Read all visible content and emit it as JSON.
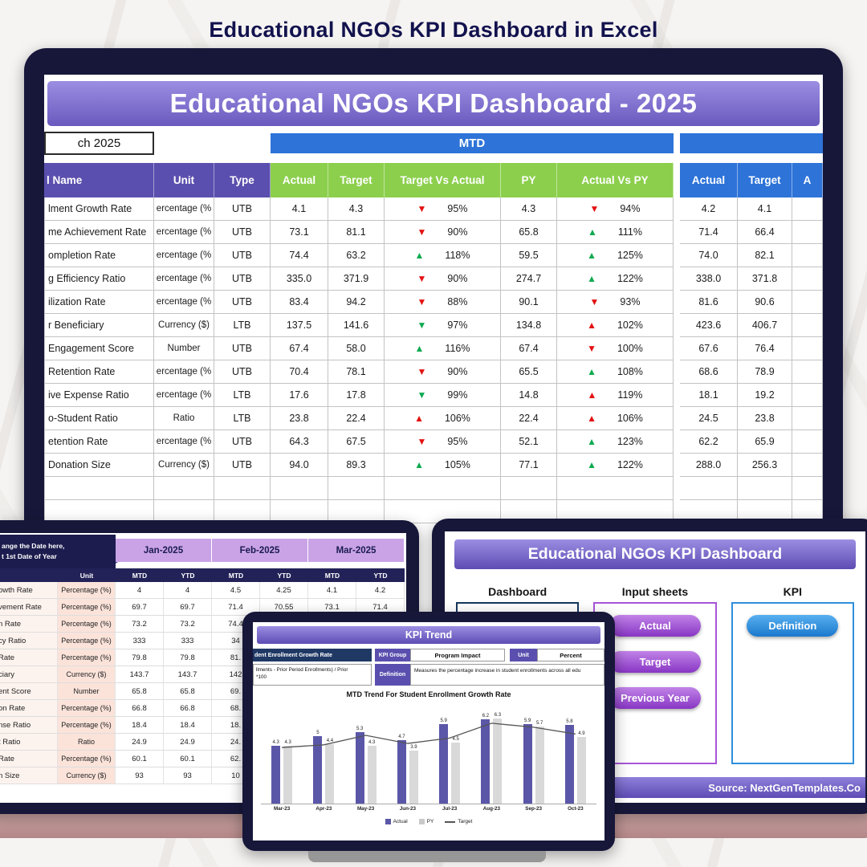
{
  "page_title": "Educational NGOs KPI Dashboard in Excel",
  "main_dashboard": {
    "title": "Educational NGOs KPI Dashboard - 2025",
    "date_box": "ch 2025",
    "mtd_label": "MTD",
    "header": {
      "name": "l Name",
      "unit": "Unit",
      "type": "Type",
      "mtd_cols": [
        "Actual",
        "Target",
        "Target Vs Actual",
        "PY",
        "Actual Vs PY"
      ],
      "right_cols": [
        "Actual",
        "Target",
        "A"
      ]
    },
    "rows": [
      {
        "name": "lment Growth Rate",
        "unit": "ercentage (%",
        "type": "UTB",
        "actual": "4.1",
        "target": "4.3",
        "tva_arrow": "▼",
        "tva_color": "red",
        "tva": "95%",
        "py": "4.3",
        "avp_arrow": "▼",
        "avp_color": "red",
        "avp": "94%",
        "r_actual": "4.2",
        "r_target": "4.1"
      },
      {
        "name": "me Achievement Rate",
        "unit": "ercentage (%",
        "type": "UTB",
        "actual": "73.1",
        "target": "81.1",
        "tva_arrow": "▼",
        "tva_color": "red",
        "tva": "90%",
        "py": "65.8",
        "avp_arrow": "▲",
        "avp_color": "green",
        "avp": "111%",
        "r_actual": "71.4",
        "r_target": "66.4"
      },
      {
        "name": "ompletion Rate",
        "unit": "ercentage (%",
        "type": "UTB",
        "actual": "74.4",
        "target": "63.2",
        "tva_arrow": "▲",
        "tva_color": "green",
        "tva": "118%",
        "py": "59.5",
        "avp_arrow": "▲",
        "avp_color": "green",
        "avp": "125%",
        "r_actual": "74.0",
        "r_target": "82.1"
      },
      {
        "name": "g Efficiency Ratio",
        "unit": "ercentage (%",
        "type": "UTB",
        "actual": "335.0",
        "target": "371.9",
        "tva_arrow": "▼",
        "tva_color": "red",
        "tva": "90%",
        "py": "274.7",
        "avp_arrow": "▲",
        "avp_color": "green",
        "avp": "122%",
        "r_actual": "338.0",
        "r_target": "371.8"
      },
      {
        "name": "ilization Rate",
        "unit": "ercentage (%",
        "type": "UTB",
        "actual": "83.4",
        "target": "94.2",
        "tva_arrow": "▼",
        "tva_color": "red",
        "tva": "88%",
        "py": "90.1",
        "avp_arrow": "▼",
        "avp_color": "red",
        "avp": "93%",
        "r_actual": "81.6",
        "r_target": "90.6"
      },
      {
        "name": "r Beneficiary",
        "unit": "Currency ($)",
        "type": "LTB",
        "actual": "137.5",
        "target": "141.6",
        "tva_arrow": "▼",
        "tva_color": "green",
        "tva": "97%",
        "py": "134.8",
        "avp_arrow": "▲",
        "avp_color": "red",
        "avp": "102%",
        "r_actual": "423.6",
        "r_target": "406.7"
      },
      {
        "name": "Engagement Score",
        "unit": "Number",
        "type": "UTB",
        "actual": "67.4",
        "target": "58.0",
        "tva_arrow": "▲",
        "tva_color": "green",
        "tva": "116%",
        "py": "67.4",
        "avp_arrow": "▼",
        "avp_color": "red",
        "avp": "100%",
        "r_actual": "67.6",
        "r_target": "76.4"
      },
      {
        "name": "Retention Rate",
        "unit": "ercentage (%",
        "type": "UTB",
        "actual": "70.4",
        "target": "78.1",
        "tva_arrow": "▼",
        "tva_color": "red",
        "tva": "90%",
        "py": "65.5",
        "avp_arrow": "▲",
        "avp_color": "green",
        "avp": "108%",
        "r_actual": "68.6",
        "r_target": "78.9"
      },
      {
        "name": "ive Expense Ratio",
        "unit": "ercentage (%",
        "type": "LTB",
        "actual": "17.6",
        "target": "17.8",
        "tva_arrow": "▼",
        "tva_color": "green",
        "tva": "99%",
        "py": "14.8",
        "avp_arrow": "▲",
        "avp_color": "red",
        "avp": "119%",
        "r_actual": "18.1",
        "r_target": "19.2"
      },
      {
        "name": "o-Student Ratio",
        "unit": "Ratio",
        "type": "LTB",
        "actual": "23.8",
        "target": "22.4",
        "tva_arrow": "▲",
        "tva_color": "red",
        "tva": "106%",
        "py": "22.4",
        "avp_arrow": "▲",
        "avp_color": "red",
        "avp": "106%",
        "r_actual": "24.5",
        "r_target": "23.8"
      },
      {
        "name": "etention Rate",
        "unit": "ercentage (%",
        "type": "UTB",
        "actual": "64.3",
        "target": "67.5",
        "tva_arrow": "▼",
        "tva_color": "red",
        "tva": "95%",
        "py": "52.1",
        "avp_arrow": "▲",
        "avp_color": "green",
        "avp": "123%",
        "r_actual": "62.2",
        "r_target": "65.9"
      },
      {
        "name": "Donation Size",
        "unit": "Currency ($)",
        "type": "UTB",
        "actual": "94.0",
        "target": "89.3",
        "tva_arrow": "▲",
        "tva_color": "green",
        "tva": "105%",
        "py": "77.1",
        "avp_arrow": "▲",
        "avp_color": "green",
        "avp": "122%",
        "r_actual": "288.0",
        "r_target": "256.3"
      }
    ]
  },
  "monthly": {
    "callout_line1": "ange the Date here,",
    "callout_line2": "t 1st Date of Year",
    "months": [
      "Jan-2025",
      "Feb-2025",
      "Mar-2025"
    ],
    "subheaders": [
      "Unit",
      "MTD",
      "YTD",
      "MTD",
      "YTD",
      "MTD",
      "YTD"
    ],
    "rows": [
      {
        "name": "owth Rate",
        "unit": "Percentage (%)",
        "values": [
          "4",
          "4",
          "4.5",
          "4.25",
          "4.1",
          "4.2"
        ]
      },
      {
        "name": "vement Rate",
        "unit": "Percentage (%)",
        "values": [
          "69.7",
          "69.7",
          "71.4",
          "70.55",
          "73.1",
          "71.4"
        ]
      },
      {
        "name": "n Rate",
        "unit": "Percentage (%)",
        "values": [
          "73.2",
          "73.2",
          "74.4",
          "",
          "",
          ""
        ]
      },
      {
        "name": "cy Ratio",
        "unit": "Percentage (%)",
        "values": [
          "333",
          "333",
          "34",
          "",
          "",
          ""
        ]
      },
      {
        "name": "Rate",
        "unit": "Percentage (%)",
        "values": [
          "79.8",
          "79.8",
          "81.",
          "",
          "",
          ""
        ]
      },
      {
        "name": "ciary",
        "unit": "Currency ($)",
        "values": [
          "143.7",
          "143.7",
          "142",
          "",
          "",
          ""
        ]
      },
      {
        "name": "ent Score",
        "unit": "Number",
        "values": [
          "65.8",
          "65.8",
          "69.",
          "",
          "",
          ""
        ]
      },
      {
        "name": "on Rate",
        "unit": "Percentage (%)",
        "values": [
          "66.8",
          "66.8",
          "68.",
          "",
          "",
          ""
        ]
      },
      {
        "name": "nse Ratio",
        "unit": "Percentage (%)",
        "values": [
          "18.4",
          "18.4",
          "18.",
          "",
          "",
          ""
        ]
      },
      {
        "name": "t Ratio",
        "unit": "Ratio",
        "values": [
          "24.9",
          "24.9",
          "24.",
          "",
          "",
          ""
        ]
      },
      {
        "name": "Rate",
        "unit": "Percentage (%)",
        "values": [
          "60.1",
          "60.1",
          "62.",
          "",
          "",
          ""
        ]
      },
      {
        "name": "n Size",
        "unit": "Currency ($)",
        "values": [
          "93",
          "93",
          "10",
          "",
          "",
          ""
        ]
      }
    ]
  },
  "nav": {
    "title": "Educational NGOs KPI Dashboard",
    "sections": [
      "Dashboard",
      "Input sheets",
      "KPI"
    ],
    "input_buttons": [
      "Actual",
      "Target",
      "Previous Year"
    ],
    "kpi_buttons": [
      "Definition"
    ],
    "footer": "Source: NextGenTemplates.Co"
  },
  "trend": {
    "title": "KPI Trend",
    "kpi_name": "dent Enrollment Growth Rate",
    "kpi_group_label": "KPI Group",
    "kpi_group_value": "Program Impact",
    "unit_label": "Unit",
    "unit_value": "Percent",
    "formula_line1": "llments - Prior Period Enrollments) / Prior",
    "formula_line2": "*100",
    "definition_label": "Definition",
    "definition_text": "Measures the percentage increase in student enrollments across all edu",
    "legend": [
      "Actual",
      "PY",
      "Target"
    ]
  },
  "chart_data": {
    "type": "bar",
    "title": "MTD Trend For Student Enrollment Growth Rate",
    "categories": [
      "Mar-23",
      "Apr-23",
      "May-23",
      "Jun-23",
      "Jul-23",
      "Aug-23",
      "Sep-23",
      "Oct-23"
    ],
    "series": [
      {
        "name": "Actual",
        "type": "bar",
        "values": [
          4.3,
          5,
          5.3,
          4.7,
          5.9,
          6.2,
          5.9,
          5.8
        ]
      },
      {
        "name": "PY",
        "type": "bar",
        "values": [
          4.3,
          4.4,
          4.3,
          3.9,
          4.5,
          6.3,
          5.7,
          4.9
        ]
      },
      {
        "name": "Target",
        "type": "line",
        "values": [
          4.2,
          4.4,
          5.1,
          4.5,
          4.9,
          6.0,
          5.7,
          5.2
        ]
      }
    ],
    "ylim": [
      0,
      7
    ],
    "legend_position": "bottom"
  },
  "colors": {
    "accent_purple": "#6a59be",
    "table_purple": "#5a4fae",
    "header_green": "#8ccf4d",
    "header_blue": "#2d73d8",
    "arrow_red": "#e31212",
    "arrow_green": "#0faa50",
    "month_purple": "#c9a3e6",
    "frame_navy": "#17173a"
  }
}
